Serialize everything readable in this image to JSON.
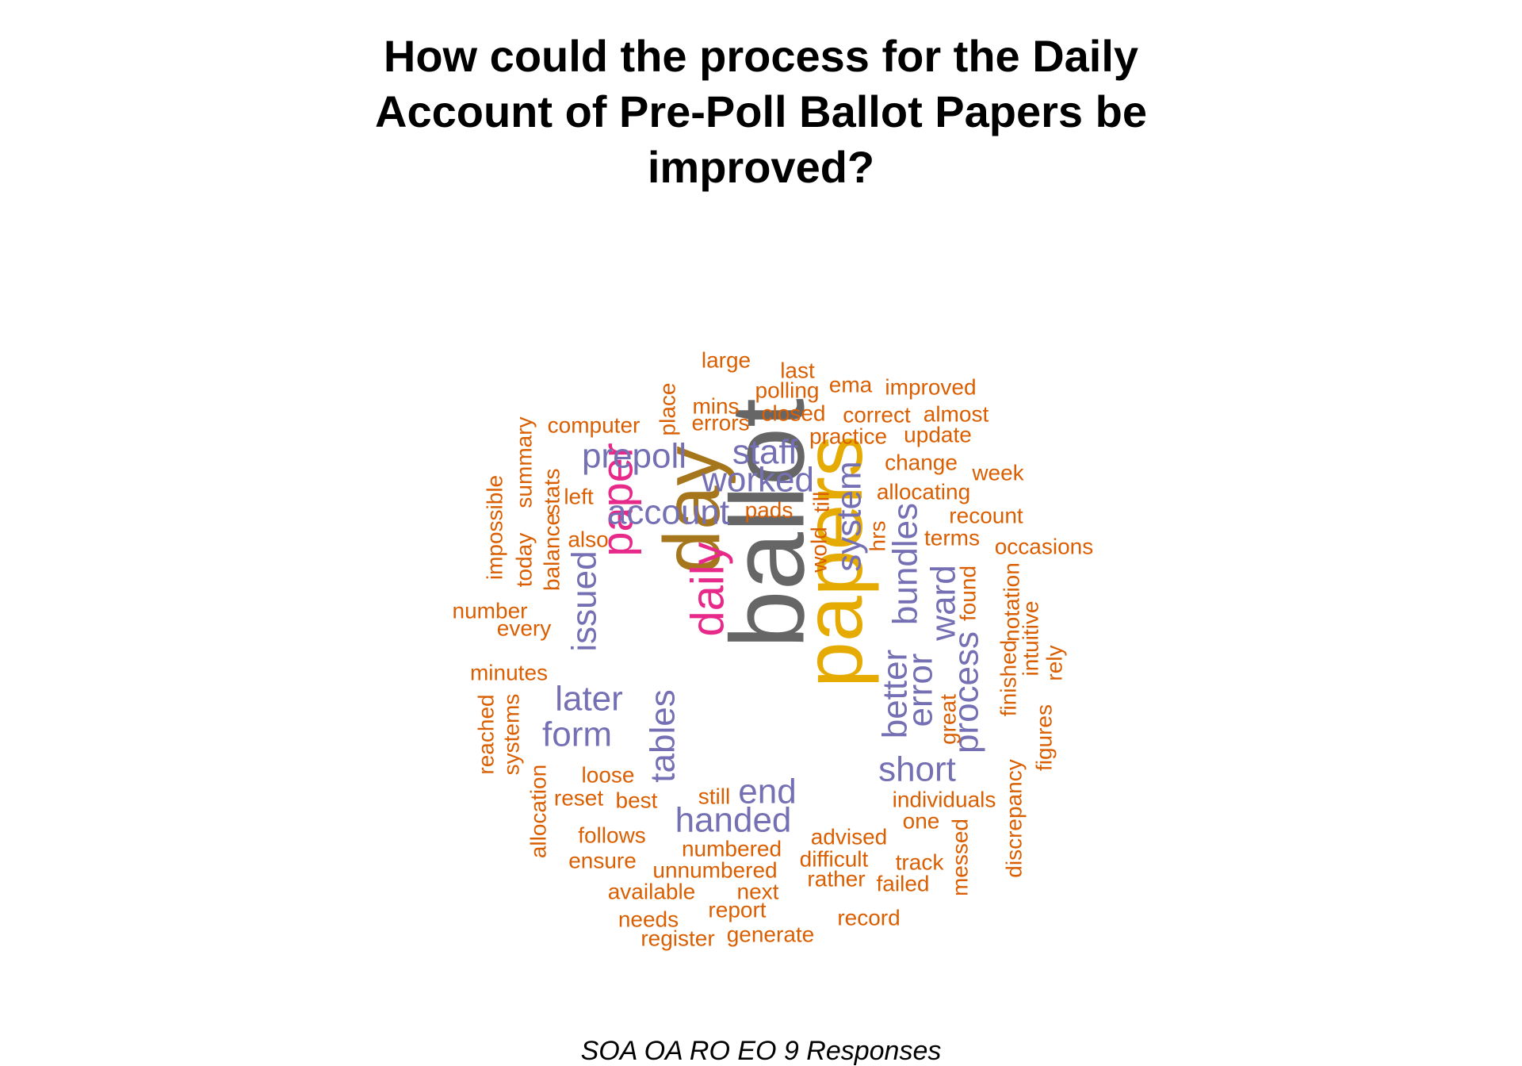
{
  "chart_data": {
    "type": "wordcloud",
    "title_lines": [
      "How could the process for the Daily",
      "Account of Pre-Poll Ballot Papers be",
      "improved?"
    ],
    "caption": "SOA OA RO EO 9 Responses",
    "colors": {
      "ballot": "#666666",
      "papers": "#e6ab02",
      "day": "#a6761d",
      "magenta": "#e7298a",
      "purple": "#7570b3",
      "orange": "#d95f02"
    },
    "words": [
      {
        "text": "ballot",
        "weight": 9,
        "color": "ballot",
        "rotated": true
      },
      {
        "text": "papers",
        "weight": 8,
        "color": "papers",
        "rotated": true
      },
      {
        "text": "day",
        "weight": 6,
        "color": "day",
        "rotated": true
      },
      {
        "text": "paper",
        "weight": 4,
        "color": "magenta",
        "rotated": true
      },
      {
        "text": "daily",
        "weight": 4,
        "color": "magenta",
        "rotated": true
      },
      {
        "text": "prepoll",
        "weight": 3,
        "color": "purple",
        "rotated": false
      },
      {
        "text": "staff",
        "weight": 3,
        "color": "purple",
        "rotated": false
      },
      {
        "text": "worked",
        "weight": 3,
        "color": "purple",
        "rotated": false
      },
      {
        "text": "account",
        "weight": 3,
        "color": "purple",
        "rotated": false
      },
      {
        "text": "system",
        "weight": 3,
        "color": "purple",
        "rotated": true
      },
      {
        "text": "issued",
        "weight": 3,
        "color": "purple",
        "rotated": true
      },
      {
        "text": "bundles",
        "weight": 3,
        "color": "purple",
        "rotated": true
      },
      {
        "text": "ward",
        "weight": 3,
        "color": "purple",
        "rotated": true
      },
      {
        "text": "later",
        "weight": 3,
        "color": "purple",
        "rotated": false
      },
      {
        "text": "form",
        "weight": 3,
        "color": "purple",
        "rotated": false
      },
      {
        "text": "tables",
        "weight": 3,
        "color": "purple",
        "rotated": true
      },
      {
        "text": "better",
        "weight": 3,
        "color": "purple",
        "rotated": true
      },
      {
        "text": "error",
        "weight": 3,
        "color": "purple",
        "rotated": true
      },
      {
        "text": "process",
        "weight": 3,
        "color": "purple",
        "rotated": true
      },
      {
        "text": "short",
        "weight": 3,
        "color": "purple",
        "rotated": false
      },
      {
        "text": "end",
        "weight": 3,
        "color": "purple",
        "rotated": false
      },
      {
        "text": "handed",
        "weight": 3,
        "color": "purple",
        "rotated": false
      },
      {
        "text": "large",
        "weight": 1,
        "color": "orange",
        "rotated": false
      },
      {
        "text": "last",
        "weight": 1,
        "color": "orange",
        "rotated": false
      },
      {
        "text": "polling",
        "weight": 1,
        "color": "orange",
        "rotated": false
      },
      {
        "text": "ema",
        "weight": 1,
        "color": "orange",
        "rotated": false
      },
      {
        "text": "improved",
        "weight": 1,
        "color": "orange",
        "rotated": false
      },
      {
        "text": "place",
        "weight": 1,
        "color": "orange",
        "rotated": true
      },
      {
        "text": "mins",
        "weight": 1,
        "color": "orange",
        "rotated": false
      },
      {
        "text": "errors",
        "weight": 1,
        "color": "orange",
        "rotated": false
      },
      {
        "text": "closed",
        "weight": 1,
        "color": "orange",
        "rotated": false
      },
      {
        "text": "correct",
        "weight": 1,
        "color": "orange",
        "rotated": false
      },
      {
        "text": "almost",
        "weight": 1,
        "color": "orange",
        "rotated": false
      },
      {
        "text": "computer",
        "weight": 1,
        "color": "orange",
        "rotated": false
      },
      {
        "text": "practice",
        "weight": 1,
        "color": "orange",
        "rotated": false
      },
      {
        "text": "update",
        "weight": 1,
        "color": "orange",
        "rotated": false
      },
      {
        "text": "summary",
        "weight": 1,
        "color": "orange",
        "rotated": true
      },
      {
        "text": "change",
        "weight": 1,
        "color": "orange",
        "rotated": false
      },
      {
        "text": "week",
        "weight": 1,
        "color": "orange",
        "rotated": false
      },
      {
        "text": "allocating",
        "weight": 1,
        "color": "orange",
        "rotated": false
      },
      {
        "text": "stats",
        "weight": 1,
        "color": "orange",
        "rotated": true
      },
      {
        "text": "left",
        "weight": 1,
        "color": "orange",
        "rotated": false
      },
      {
        "text": "pads",
        "weight": 1,
        "color": "orange",
        "rotated": false
      },
      {
        "text": "till",
        "weight": 1,
        "color": "orange",
        "rotated": true
      },
      {
        "text": "recount",
        "weight": 1,
        "color": "orange",
        "rotated": false
      },
      {
        "text": "impossible",
        "weight": 1,
        "color": "orange",
        "rotated": true
      },
      {
        "text": "today",
        "weight": 1,
        "color": "orange",
        "rotated": true
      },
      {
        "text": "balance",
        "weight": 1,
        "color": "orange",
        "rotated": true
      },
      {
        "text": "also",
        "weight": 1,
        "color": "orange",
        "rotated": false
      },
      {
        "text": "wold",
        "weight": 1,
        "color": "orange",
        "rotated": true
      },
      {
        "text": "hrs",
        "weight": 1,
        "color": "orange",
        "rotated": true
      },
      {
        "text": "terms",
        "weight": 1,
        "color": "orange",
        "rotated": false
      },
      {
        "text": "occasions",
        "weight": 1,
        "color": "orange",
        "rotated": false
      },
      {
        "text": "found",
        "weight": 1,
        "color": "orange",
        "rotated": true
      },
      {
        "text": "notation",
        "weight": 1,
        "color": "orange",
        "rotated": true
      },
      {
        "text": "number",
        "weight": 1,
        "color": "orange",
        "rotated": false
      },
      {
        "text": "every",
        "weight": 1,
        "color": "orange",
        "rotated": false
      },
      {
        "text": "intuitive",
        "weight": 1,
        "color": "orange",
        "rotated": true
      },
      {
        "text": "rely",
        "weight": 1,
        "color": "orange",
        "rotated": true
      },
      {
        "text": "finished",
        "weight": 1,
        "color": "orange",
        "rotated": true
      },
      {
        "text": "minutes",
        "weight": 1,
        "color": "orange",
        "rotated": false
      },
      {
        "text": "reached",
        "weight": 1,
        "color": "orange",
        "rotated": true
      },
      {
        "text": "systems",
        "weight": 1,
        "color": "orange",
        "rotated": true
      },
      {
        "text": "great",
        "weight": 1,
        "color": "orange",
        "rotated": true
      },
      {
        "text": "figures",
        "weight": 1,
        "color": "orange",
        "rotated": true
      },
      {
        "text": "loose",
        "weight": 1,
        "color": "orange",
        "rotated": false
      },
      {
        "text": "reset",
        "weight": 1,
        "color": "orange",
        "rotated": false
      },
      {
        "text": "best",
        "weight": 1,
        "color": "orange",
        "rotated": false
      },
      {
        "text": "still",
        "weight": 1,
        "color": "orange",
        "rotated": false
      },
      {
        "text": "individuals",
        "weight": 1,
        "color": "orange",
        "rotated": false
      },
      {
        "text": "discrepancy",
        "weight": 1,
        "color": "orange",
        "rotated": true
      },
      {
        "text": "allocation",
        "weight": 1,
        "color": "orange",
        "rotated": true
      },
      {
        "text": "one",
        "weight": 1,
        "color": "orange",
        "rotated": false
      },
      {
        "text": "follows",
        "weight": 1,
        "color": "orange",
        "rotated": false
      },
      {
        "text": "advised",
        "weight": 1,
        "color": "orange",
        "rotated": false
      },
      {
        "text": "messed",
        "weight": 1,
        "color": "orange",
        "rotated": true
      },
      {
        "text": "numbered",
        "weight": 1,
        "color": "orange",
        "rotated": false
      },
      {
        "text": "ensure",
        "weight": 1,
        "color": "orange",
        "rotated": false
      },
      {
        "text": "difficult",
        "weight": 1,
        "color": "orange",
        "rotated": false
      },
      {
        "text": "track",
        "weight": 1,
        "color": "orange",
        "rotated": false
      },
      {
        "text": "unnumbered",
        "weight": 1,
        "color": "orange",
        "rotated": false
      },
      {
        "text": "rather",
        "weight": 1,
        "color": "orange",
        "rotated": false
      },
      {
        "text": "failed",
        "weight": 1,
        "color": "orange",
        "rotated": false
      },
      {
        "text": "available",
        "weight": 1,
        "color": "orange",
        "rotated": false
      },
      {
        "text": "next",
        "weight": 1,
        "color": "orange",
        "rotated": false
      },
      {
        "text": "report",
        "weight": 1,
        "color": "orange",
        "rotated": false
      },
      {
        "text": "record",
        "weight": 1,
        "color": "orange",
        "rotated": false
      },
      {
        "text": "needs",
        "weight": 1,
        "color": "orange",
        "rotated": false
      },
      {
        "text": "register",
        "weight": 1,
        "color": "orange",
        "rotated": false
      },
      {
        "text": "generate",
        "weight": 1,
        "color": "orange",
        "rotated": false
      }
    ]
  }
}
